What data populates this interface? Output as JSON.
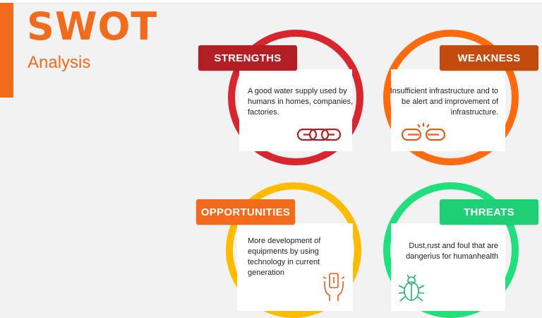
{
  "header": {
    "title": "SWOT",
    "subtitle": "Analysis"
  },
  "colors": {
    "accent": "#f26a1b",
    "strengths": "#d7262e",
    "weakness": "#ff6a0f",
    "opportunities": "#ffbb00",
    "threats": "#1fe07c"
  },
  "quadrants": {
    "strengths": {
      "label": "STRENGTHS",
      "text": "A good water supply used by humans in homes, companies, factories.",
      "icon": "chain-link-icon"
    },
    "weakness": {
      "label": "WEAKNESS",
      "text": "Insufficient  infrastructure and to be alert  and improvement of infrastructure.",
      "icon": "broken-chain-icon"
    },
    "opportunities": {
      "label": "OPPORTUNITIES",
      "text": "More development of equipments by using technology in current generation",
      "icon": "hand-idea-icon"
    },
    "threats": {
      "label": "THREATS",
      "text": "Dust,rust and foul that are dangerius for humanhealth",
      "icon": "bug-icon"
    }
  }
}
